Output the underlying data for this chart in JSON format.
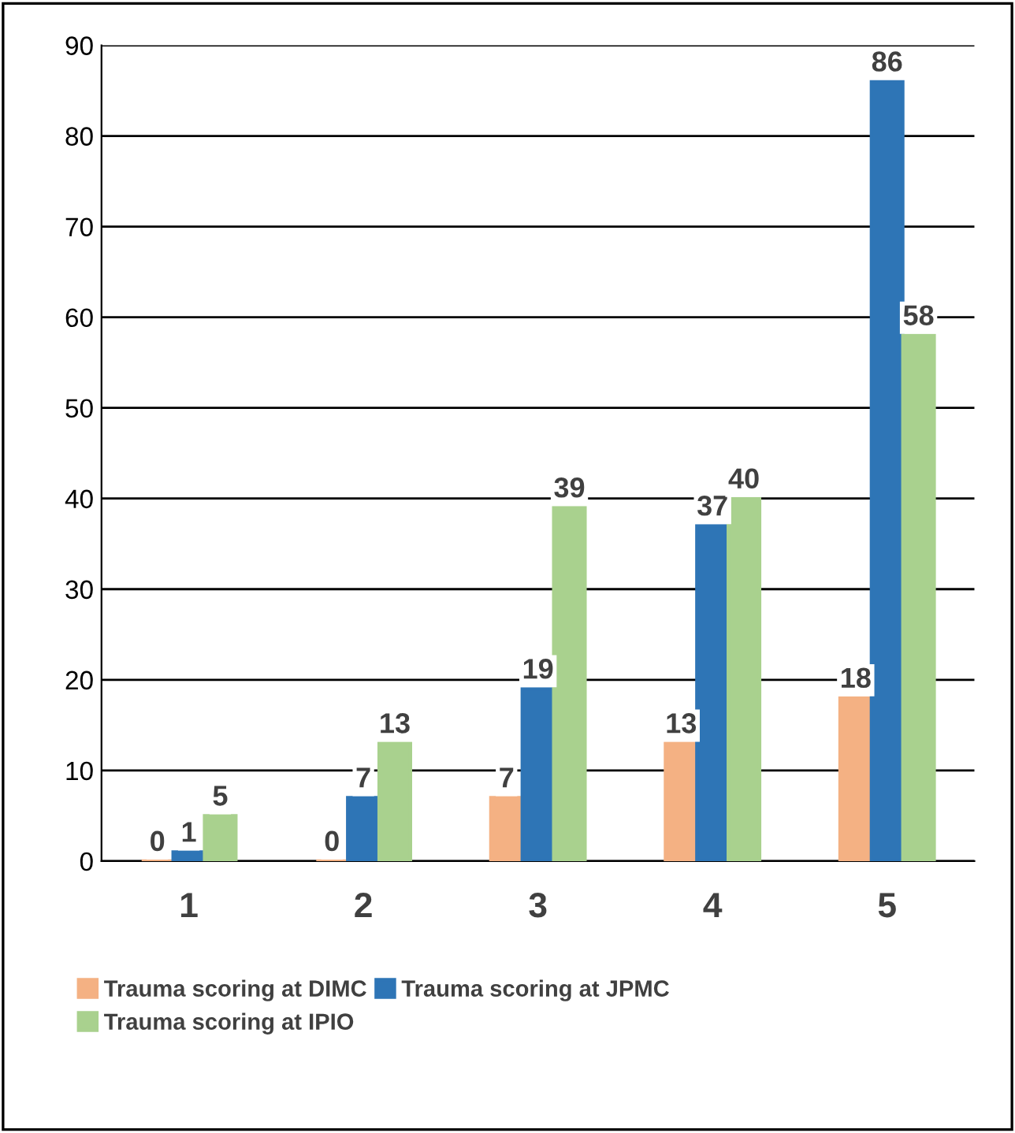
{
  "chart_data": {
    "type": "bar",
    "categories": [
      "1",
      "2",
      "3",
      "4",
      "5"
    ],
    "series": [
      {
        "name": "Trauma scoring at DIMC",
        "color": "#f4b183",
        "values": [
          0,
          0,
          7,
          13,
          18
        ]
      },
      {
        "name": "Trauma scoring at JPMC",
        "color": "#2e75b6",
        "values": [
          1,
          7,
          19,
          37,
          86
        ]
      },
      {
        "name": "Trauma scoring at IPIO",
        "color": "#a9d18e",
        "values": [
          5,
          13,
          39,
          40,
          58
        ]
      }
    ],
    "ylim": [
      0,
      90
    ],
    "yticks": [
      0,
      10,
      20,
      30,
      40,
      50,
      60,
      70,
      80,
      90
    ],
    "grid": "y",
    "legend": "bottom",
    "data_labels": true
  }
}
